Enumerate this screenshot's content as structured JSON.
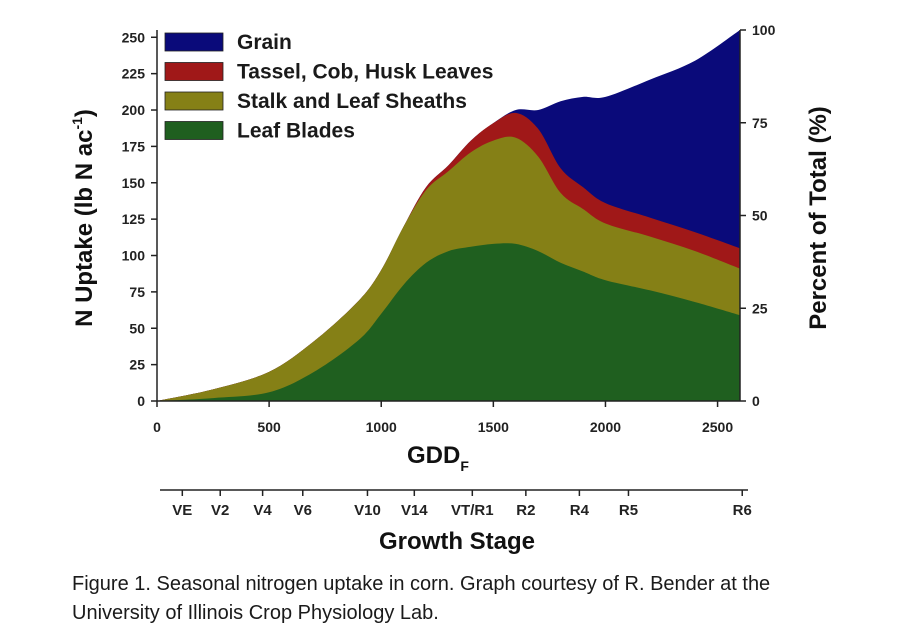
{
  "chart_data": {
    "type": "area",
    "stacked": true,
    "x": [
      0,
      250,
      500,
      700,
      900,
      1000,
      1100,
      1200,
      1300,
      1400,
      1500,
      1600,
      1700,
      1800,
      1900,
      2000,
      2200,
      2400,
      2600
    ],
    "series": [
      {
        "name": "Leaf Blades",
        "color": "#1f5f1f",
        "values": [
          0,
          2,
          6,
          20,
          42,
          60,
          80,
          95,
          103,
          106,
          108,
          108,
          103,
          95,
          89,
          83,
          76,
          68,
          59
        ]
      },
      {
        "name": "Stalk and Leaf Sheaths",
        "color": "#858016",
        "values": [
          0,
          6,
          14,
          21,
          27,
          30,
          40,
          50,
          55,
          65,
          71,
          73,
          65,
          48,
          43,
          39,
          37,
          35,
          32
        ]
      },
      {
        "name": "Tassel, Cob, Husk Leaves",
        "color": "#a01818",
        "values": [
          0,
          0,
          0,
          0,
          0,
          0,
          0,
          2,
          4,
          8,
          12,
          17,
          19,
          17,
          15,
          14,
          13,
          13,
          14
        ]
      },
      {
        "name": "Grain",
        "color": "#0a0a7a",
        "values": [
          0,
          0,
          0,
          0,
          0,
          0,
          0,
          0,
          0,
          0,
          0,
          2,
          13,
          46,
          62,
          73,
          95,
          118,
          150
        ]
      }
    ],
    "xlabel": "GDD",
    "xlabel_sub": "F",
    "ylabel": "N Uptake (lb N ac",
    "ylabel_sup": "-1",
    "ylabel_close": ")",
    "y2label": "Percent of Total (%)",
    "xlim": [
      0,
      2600
    ],
    "ylim": [
      0,
      255
    ],
    "y2lim": [
      0,
      100
    ],
    "x_ticks": [
      0,
      500,
      1000,
      1500,
      2000,
      2500
    ],
    "y_ticks": [
      0,
      25,
      50,
      75,
      100,
      125,
      150,
      175,
      200,
      225,
      250
    ],
    "y2_ticks": [
      0,
      25,
      50,
      75,
      100
    ],
    "legend_position": "top-left",
    "grid": false,
    "growth_stage_axis": {
      "title": "Growth Stage",
      "stages": [
        {
          "label": "VE",
          "gdd": 100
        },
        {
          "label": "V2",
          "gdd": 270
        },
        {
          "label": "V4",
          "gdd": 460
        },
        {
          "label": "V6",
          "gdd": 640
        },
        {
          "label": "V10",
          "gdd": 930
        },
        {
          "label": "V14",
          "gdd": 1140
        },
        {
          "label": "VT/R1",
          "gdd": 1400
        },
        {
          "label": "R2",
          "gdd": 1640
        },
        {
          "label": "R4",
          "gdd": 1880
        },
        {
          "label": "R5",
          "gdd": 2100
        },
        {
          "label": "R6",
          "gdd": 2610
        }
      ]
    }
  },
  "caption": {
    "line1": "Figure 1. Seasonal nitrogen uptake in corn. Graph courtesy of R. Bender at the",
    "line2": "University of Illinois Crop Physiology Lab."
  }
}
